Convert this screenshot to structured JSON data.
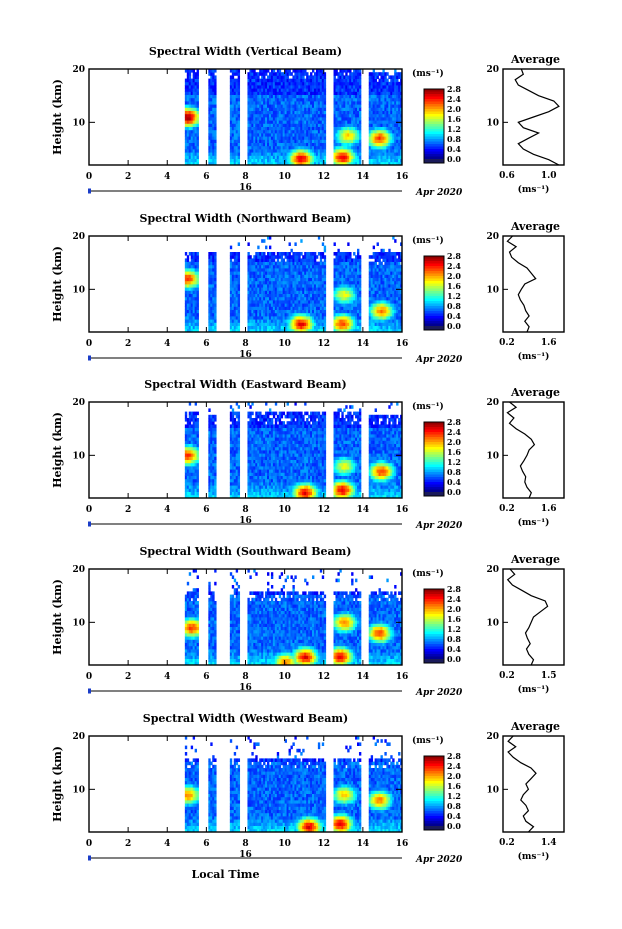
{
  "figure": {
    "xaxis_title": "Local Time",
    "date_label": "Apr 2020",
    "date_marker": "16"
  },
  "chart_data": [
    {
      "type": "heatmap",
      "title": "Spectral Width (Vertical Beam)",
      "ylabel": "Height (km)",
      "xlim": [
        0,
        16
      ],
      "ylim": [
        2,
        20
      ],
      "xticks": [
        "0",
        "2",
        "4",
        "6",
        "8",
        "10",
        "12",
        "14",
        "16"
      ],
      "yticks": [
        "10",
        "20"
      ],
      "colorbar": {
        "unit": "(ms⁻¹)",
        "range": [
          0.0,
          2.8
        ],
        "ticks": [
          "2.8",
          "2.4",
          "2.0",
          "1.6",
          "1.2",
          "0.8",
          "0.4",
          "0.0"
        ]
      },
      "data_gaps": [
        [
          0,
          4.9
        ],
        [
          5.6,
          6.1
        ],
        [
          6.5,
          7.2
        ],
        [
          7.7,
          8.1
        ],
        [
          12.1,
          12.5
        ],
        [
          13.9,
          14.3
        ]
      ],
      "top_km": 20,
      "hot_spots": [
        [
          5.0,
          11.0,
          2.6
        ],
        [
          10.8,
          3.2,
          2.4
        ],
        [
          12.9,
          3.5,
          2.4
        ],
        [
          14.8,
          7.0,
          2.2
        ],
        [
          13.2,
          7.5,
          1.8
        ]
      ],
      "profile": {
        "title": "Average",
        "xlabel": "(ms⁻¹)",
        "xlim": [
          0.6,
          1.2
        ],
        "xticks": [
          "0.6",
          "1.0"
        ],
        "points": [
          [
            1.15,
            2
          ],
          [
            1.05,
            3
          ],
          [
            0.9,
            4
          ],
          [
            0.8,
            5
          ],
          [
            0.75,
            6
          ],
          [
            0.85,
            7
          ],
          [
            0.95,
            8
          ],
          [
            0.8,
            9
          ],
          [
            0.75,
            10
          ],
          [
            0.9,
            11
          ],
          [
            1.05,
            12
          ],
          [
            1.15,
            13
          ],
          [
            1.1,
            14
          ],
          [
            0.95,
            15
          ],
          [
            0.85,
            16
          ],
          [
            0.75,
            17
          ],
          [
            0.72,
            18
          ],
          [
            0.8,
            19
          ],
          [
            0.78,
            20
          ]
        ]
      }
    },
    {
      "type": "heatmap",
      "title": "Spectral Width (Northward Beam)",
      "ylabel": "Height (km)",
      "xlim": [
        0,
        16
      ],
      "ylim": [
        2,
        20
      ],
      "xticks": [
        "0",
        "2",
        "4",
        "6",
        "8",
        "10",
        "12",
        "14",
        "16"
      ],
      "yticks": [
        "10",
        "20"
      ],
      "colorbar": {
        "unit": "(ms⁻¹)",
        "range": [
          0.0,
          2.8
        ],
        "ticks": [
          "2.8",
          "2.4",
          "2.0",
          "1.6",
          "1.2",
          "0.8",
          "0.4",
          "0.0"
        ]
      },
      "data_gaps": [
        [
          0,
          4.9
        ],
        [
          5.6,
          6.1
        ],
        [
          6.5,
          7.2
        ],
        [
          7.7,
          8.1
        ],
        [
          12.1,
          12.5
        ],
        [
          13.9,
          14.3
        ]
      ],
      "top_km": 17,
      "hot_spots": [
        [
          10.8,
          3.5,
          2.4
        ],
        [
          12.9,
          3.6,
          2.2
        ],
        [
          14.9,
          6.0,
          2.0
        ],
        [
          5.0,
          12.0,
          2.2
        ],
        [
          13.0,
          9.0,
          1.6
        ]
      ],
      "profile": {
        "title": "Average",
        "xlabel": "(ms⁻¹)",
        "xlim": [
          0.2,
          1.6
        ],
        "xticks": [
          "0.2",
          "1.6"
        ],
        "points": [
          [
            0.75,
            2
          ],
          [
            0.8,
            3
          ],
          [
            0.7,
            4
          ],
          [
            0.8,
            5
          ],
          [
            0.72,
            6
          ],
          [
            0.68,
            7
          ],
          [
            0.6,
            8
          ],
          [
            0.55,
            9
          ],
          [
            0.62,
            10
          ],
          [
            0.7,
            11
          ],
          [
            0.95,
            12
          ],
          [
            0.85,
            13
          ],
          [
            0.75,
            14
          ],
          [
            0.55,
            15
          ],
          [
            0.4,
            16
          ],
          [
            0.35,
            17
          ],
          [
            0.5,
            18
          ],
          [
            0.3,
            19
          ],
          [
            0.42,
            20
          ]
        ]
      }
    },
    {
      "type": "heatmap",
      "title": "Spectral Width (Eastward Beam)",
      "ylabel": "Height (km)",
      "xlim": [
        0,
        16
      ],
      "ylim": [
        2,
        20
      ],
      "xticks": [
        "0",
        "2",
        "4",
        "6",
        "8",
        "10",
        "12",
        "14",
        "16"
      ],
      "yticks": [
        "10",
        "20"
      ],
      "colorbar": {
        "unit": "(ms⁻¹)",
        "range": [
          0.0,
          2.8
        ],
        "ticks": [
          "2.8",
          "2.4",
          "2.0",
          "1.6",
          "1.2",
          "0.8",
          "0.4",
          "0.0"
        ]
      },
      "data_gaps": [
        [
          0,
          4.9
        ],
        [
          5.6,
          6.1
        ],
        [
          6.5,
          7.2
        ],
        [
          7.7,
          8.1
        ],
        [
          12.1,
          12.5
        ],
        [
          13.9,
          14.3
        ]
      ],
      "top_km": 18,
      "hot_spots": [
        [
          11.0,
          3.0,
          2.4
        ],
        [
          12.9,
          3.5,
          2.4
        ],
        [
          14.9,
          7.0,
          2.2
        ],
        [
          5.0,
          10.0,
          2.2
        ],
        [
          13.0,
          8.0,
          1.6
        ]
      ],
      "profile": {
        "title": "Average",
        "xlabel": "(ms⁻¹)",
        "xlim": [
          0.2,
          1.6
        ],
        "xticks": [
          "0.2",
          "1.6"
        ],
        "points": [
          [
            0.8,
            2
          ],
          [
            0.85,
            3
          ],
          [
            0.75,
            4
          ],
          [
            0.7,
            5
          ],
          [
            0.72,
            6
          ],
          [
            0.65,
            7
          ],
          [
            0.6,
            8
          ],
          [
            0.68,
            9
          ],
          [
            0.75,
            10
          ],
          [
            0.8,
            11
          ],
          [
            0.92,
            12
          ],
          [
            0.85,
            13
          ],
          [
            0.7,
            14
          ],
          [
            0.5,
            15
          ],
          [
            0.35,
            16
          ],
          [
            0.45,
            17
          ],
          [
            0.3,
            18
          ],
          [
            0.5,
            19
          ],
          [
            0.35,
            20
          ]
        ]
      }
    },
    {
      "type": "heatmap",
      "title": "Spectral Width (Southward Beam)",
      "ylabel": "Height (km)",
      "xlim": [
        0,
        16
      ],
      "ylim": [
        2,
        20
      ],
      "xticks": [
        "0",
        "2",
        "4",
        "6",
        "8",
        "10",
        "12",
        "14",
        "16"
      ],
      "yticks": [
        "10",
        "20"
      ],
      "colorbar": {
        "unit": "(ms⁻¹)",
        "range": [
          0.0,
          2.8
        ],
        "ticks": [
          "2.8",
          "2.4",
          "2.0",
          "1.6",
          "1.2",
          "0.8",
          "0.4",
          "0.0"
        ]
      },
      "data_gaps": [
        [
          0,
          4.9
        ],
        [
          5.6,
          6.1
        ],
        [
          6.5,
          7.2
        ],
        [
          7.7,
          8.1
        ],
        [
          12.1,
          12.5
        ],
        [
          13.9,
          14.3
        ]
      ],
      "top_km": 16,
      "hot_spots": [
        [
          11.0,
          3.5,
          2.4
        ],
        [
          12.8,
          3.6,
          2.4
        ],
        [
          14.8,
          8.0,
          2.2
        ],
        [
          5.2,
          9.0,
          2.2
        ],
        [
          13.0,
          10.0,
          2.0
        ],
        [
          10.0,
          2.5,
          2.0
        ]
      ],
      "profile": {
        "title": "Average",
        "xlabel": "(ms⁻¹)",
        "xlim": [
          0.2,
          1.5
        ],
        "xticks": [
          "0.2",
          "1.5"
        ],
        "points": [
          [
            0.8,
            2
          ],
          [
            0.85,
            3
          ],
          [
            0.75,
            4
          ],
          [
            0.7,
            5
          ],
          [
            0.78,
            6
          ],
          [
            0.72,
            7
          ],
          [
            0.68,
            8
          ],
          [
            0.75,
            9
          ],
          [
            0.8,
            10
          ],
          [
            0.85,
            11
          ],
          [
            1.0,
            12
          ],
          [
            1.15,
            13
          ],
          [
            1.1,
            14
          ],
          [
            0.8,
            15
          ],
          [
            0.6,
            16
          ],
          [
            0.4,
            17
          ],
          [
            0.3,
            18
          ],
          [
            0.45,
            19
          ],
          [
            0.35,
            20
          ]
        ]
      }
    },
    {
      "type": "heatmap",
      "title": "Spectral Width (Westward Beam)",
      "ylabel": "Height (km)",
      "xlim": [
        0,
        16
      ],
      "ylim": [
        2,
        20
      ],
      "xticks": [
        "0",
        "2",
        "4",
        "6",
        "8",
        "10",
        "12",
        "14",
        "16"
      ],
      "yticks": [
        "10",
        "20"
      ],
      "colorbar": {
        "unit": "(ms⁻¹)",
        "range": [
          0.0,
          2.8
        ],
        "ticks": [
          "2.8",
          "2.4",
          "2.0",
          "1.6",
          "1.2",
          "0.8",
          "0.4",
          "0.0"
        ]
      },
      "data_gaps": [
        [
          0,
          4.9
        ],
        [
          5.6,
          6.1
        ],
        [
          6.5,
          7.2
        ],
        [
          7.7,
          8.1
        ],
        [
          12.1,
          12.5
        ],
        [
          13.9,
          14.3
        ]
      ],
      "top_km": 16,
      "hot_spots": [
        [
          11.2,
          3.0,
          2.4
        ],
        [
          12.8,
          3.5,
          2.4
        ],
        [
          14.8,
          8.0,
          2.0
        ],
        [
          5.0,
          9.0,
          2.0
        ],
        [
          13.0,
          9.0,
          1.8
        ]
      ],
      "profile": {
        "title": "Average",
        "xlabel": "(ms⁻¹)",
        "xlim": [
          0.2,
          1.4
        ],
        "xticks": [
          "0.2",
          "1.4"
        ],
        "points": [
          [
            0.7,
            2
          ],
          [
            0.8,
            3
          ],
          [
            0.65,
            4
          ],
          [
            0.6,
            5
          ],
          [
            0.7,
            6
          ],
          [
            0.65,
            7
          ],
          [
            0.55,
            8
          ],
          [
            0.6,
            9
          ],
          [
            0.7,
            10
          ],
          [
            0.65,
            11
          ],
          [
            0.75,
            12
          ],
          [
            0.85,
            13
          ],
          [
            0.75,
            14
          ],
          [
            0.55,
            15
          ],
          [
            0.4,
            16
          ],
          [
            0.3,
            17
          ],
          [
            0.45,
            18
          ],
          [
            0.3,
            19
          ],
          [
            0.4,
            20
          ]
        ]
      }
    }
  ]
}
